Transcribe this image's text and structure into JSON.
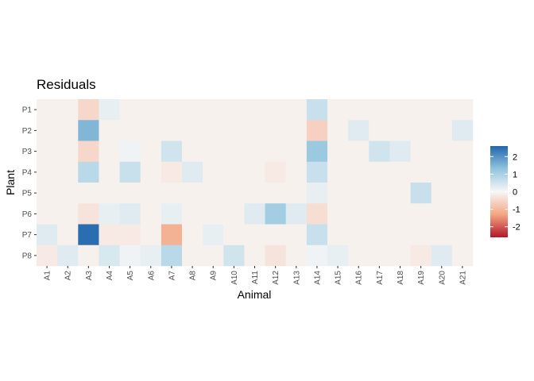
{
  "chart_data": {
    "type": "heatmap",
    "title": "Residuals",
    "xlabel": "Animal",
    "ylabel": "Plant",
    "x_categories": [
      "A1",
      "A2",
      "A3",
      "A4",
      "A5",
      "A6",
      "A7",
      "A8",
      "A9",
      "A10",
      "A11",
      "A12",
      "A13",
      "A14",
      "A15",
      "A16",
      "A17",
      "A18",
      "A19",
      "A20",
      "A21"
    ],
    "y_categories": [
      "P1",
      "P2",
      "P3",
      "P4",
      "P5",
      "P6",
      "P7",
      "P8"
    ],
    "values": [
      [
        -0.1,
        -0.1,
        -0.5,
        0.2,
        -0.1,
        -0.1,
        -0.1,
        -0.1,
        -0.1,
        -0.1,
        -0.1,
        -0.1,
        -0.1,
        0.6,
        -0.1,
        -0.1,
        -0.1,
        -0.1,
        -0.1,
        -0.1,
        -0.1
      ],
      [
        -0.1,
        -0.1,
        1.5,
        -0.1,
        -0.1,
        -0.1,
        -0.1,
        -0.1,
        -0.1,
        -0.1,
        -0.1,
        -0.1,
        -0.1,
        -0.6,
        -0.1,
        0.3,
        -0.1,
        -0.1,
        -0.1,
        -0.1,
        0.3
      ],
      [
        -0.1,
        -0.1,
        -0.5,
        -0.1,
        0.1,
        -0.1,
        0.5,
        -0.1,
        -0.1,
        -0.1,
        -0.1,
        -0.1,
        -0.1,
        1.2,
        -0.1,
        -0.1,
        0.5,
        0.3,
        -0.1,
        -0.1,
        -0.1
      ],
      [
        -0.1,
        -0.1,
        0.8,
        -0.1,
        0.6,
        -0.1,
        -0.2,
        0.3,
        -0.1,
        -0.1,
        -0.1,
        -0.2,
        -0.1,
        0.6,
        -0.1,
        -0.1,
        -0.1,
        -0.1,
        -0.1,
        -0.1,
        -0.1
      ],
      [
        -0.1,
        -0.1,
        -0.1,
        -0.1,
        -0.1,
        -0.1,
        -0.1,
        -0.1,
        -0.1,
        -0.1,
        -0.1,
        -0.1,
        -0.1,
        0.2,
        -0.1,
        -0.1,
        -0.1,
        -0.1,
        0.6,
        -0.1,
        -0.1
      ],
      [
        -0.1,
        -0.1,
        -0.3,
        0.2,
        0.3,
        -0.1,
        0.2,
        -0.1,
        -0.1,
        -0.1,
        0.3,
        1.1,
        0.3,
        -0.4,
        -0.1,
        -0.1,
        -0.1,
        -0.1,
        -0.1,
        -0.1,
        -0.1
      ],
      [
        0.3,
        -0.1,
        2.5,
        -0.2,
        -0.2,
        -0.1,
        -1.1,
        -0.1,
        0.2,
        -0.1,
        -0.1,
        -0.1,
        -0.1,
        0.6,
        -0.1,
        -0.1,
        -0.1,
        -0.1,
        -0.1,
        -0.1,
        -0.1
      ],
      [
        -0.2,
        0.3,
        -0.1,
        0.4,
        0.1,
        0.2,
        0.8,
        -0.1,
        -0.1,
        0.5,
        -0.1,
        -0.3,
        -0.1,
        0.1,
        0.2,
        -0.1,
        -0.1,
        -0.1,
        -0.2,
        0.3,
        -0.1
      ]
    ],
    "legend": {
      "ticks": [
        2,
        1,
        0,
        -1,
        -2
      ],
      "tick_labels": [
        "2",
        "1",
        "0",
        "-1",
        "-2"
      ],
      "range": [
        -2.6,
        2.6
      ],
      "position": "right"
    },
    "colors": {
      "high": "#2166ac",
      "mid_high": "#92c5de",
      "mid": "#f7f7f7",
      "mid_low": "#f4a582",
      "low": "#b2182b",
      "panel_background": "#ebebeb"
    },
    "grid": true
  }
}
